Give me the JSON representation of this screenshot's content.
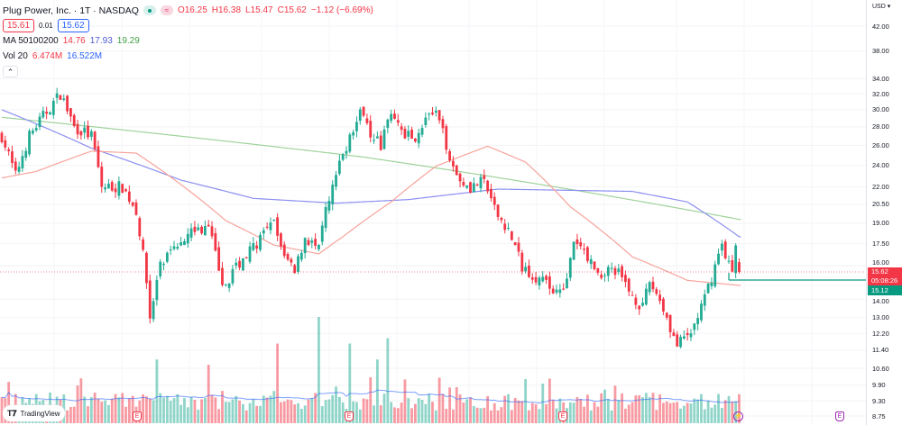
{
  "header": {
    "title": "Plug Power, Inc. · 1T · NASDAQ",
    "open": "O16.25",
    "high": "H16.38",
    "low": "L15.47",
    "close": "C15.62",
    "change": "−1.12 (−6.69%)",
    "bid": "15.61",
    "spread": "0.01",
    "ask": "15.62",
    "market_icon": "dot-icon",
    "flag_icon": "tilde-icon",
    "flag_glyph": "≈",
    "collapse_glyph": "⌃"
  },
  "indicators": {
    "ma_label": "MA 50100200",
    "ma50": "14.76",
    "ma100": "17.93",
    "ma200": "19.29",
    "vol_label": "Vol 20",
    "vol": "6.474M",
    "vol_ma": "16.522M"
  },
  "axis": {
    "currency": "USD ▾",
    "ticks": [
      "42.00",
      "38.00",
      "34.00",
      "32.00",
      "30.00",
      "28.00",
      "26.00",
      "24.00",
      "22.00",
      "20.50",
      "19.00",
      "17.50",
      "16.00",
      "14.00",
      "13.00",
      "12.20",
      "11.40",
      "10.60",
      "9.90",
      "9.30",
      "8.75"
    ],
    "last_price": "15.62",
    "countdown": "05:08:26",
    "line_price": "15.12"
  },
  "footer": {
    "brand": "TradingView",
    "earnings_label": "E",
    "bolt_glyph": "⚡"
  },
  "colors": {
    "up": "#22ab94",
    "down": "#f23645",
    "ma50": "#f7a39b",
    "ma100": "#8c8ff0",
    "ma200": "#9fd39b"
  },
  "chart_data": {
    "type": "candlestick",
    "bars": 215,
    "ylim": [
      8.75,
      42
    ],
    "scale": "log",
    "close_path": [
      [
        0,
        27
      ],
      [
        4,
        23
      ],
      [
        8,
        27
      ],
      [
        17,
        32
      ],
      [
        21,
        28
      ],
      [
        26,
        27
      ],
      [
        29,
        22
      ],
      [
        35,
        22
      ],
      [
        39,
        20
      ],
      [
        42,
        15
      ],
      [
        43,
        13
      ],
      [
        46,
        16
      ],
      [
        50,
        17
      ],
      [
        54,
        18.5
      ],
      [
        60,
        18.5
      ],
      [
        63,
        16
      ],
      [
        64,
        14.5
      ],
      [
        68,
        16
      ],
      [
        72,
        17
      ],
      [
        79,
        19
      ],
      [
        81,
        17
      ],
      [
        85,
        15.5
      ],
      [
        88,
        18
      ],
      [
        92,
        17
      ],
      [
        94,
        20
      ],
      [
        99,
        25
      ],
      [
        102,
        28
      ],
      [
        105,
        30
      ],
      [
        107,
        27.5
      ],
      [
        110,
        26
      ],
      [
        113,
        30
      ],
      [
        115,
        28
      ],
      [
        118,
        27
      ],
      [
        120,
        27
      ],
      [
        123,
        29
      ],
      [
        126,
        29.5
      ],
      [
        130,
        25
      ],
      [
        132,
        23
      ],
      [
        136,
        22
      ],
      [
        140,
        22.5
      ],
      [
        143,
        20
      ],
      [
        147,
        18.5
      ],
      [
        151,
        16
      ],
      [
        154,
        15.5
      ],
      [
        160,
        14.5
      ],
      [
        164,
        15
      ],
      [
        166,
        17.5
      ],
      [
        169,
        17
      ],
      [
        173,
        15.5
      ],
      [
        178,
        15.8
      ],
      [
        182,
        14.5
      ],
      [
        186,
        13.5
      ],
      [
        188,
        15
      ],
      [
        191,
        14
      ],
      [
        194,
        12.5
      ],
      [
        196,
        11.6
      ],
      [
        200,
        12.2
      ],
      [
        204,
        14
      ],
      [
        207,
        16
      ],
      [
        209,
        17.5
      ],
      [
        212,
        15.5
      ],
      [
        213,
        17.2
      ],
      [
        214,
        15.62
      ]
    ],
    "ma50": [
      [
        0,
        22.8
      ],
      [
        10,
        23.4
      ],
      [
        26,
        25.4
      ],
      [
        39,
        25.2
      ],
      [
        52,
        22.2
      ],
      [
        65,
        19.2
      ],
      [
        79,
        17.4
      ],
      [
        92,
        16.8
      ],
      [
        99,
        18.0
      ],
      [
        113,
        20.7
      ],
      [
        126,
        23.9
      ],
      [
        141,
        25.9
      ],
      [
        152,
        24.3
      ],
      [
        165,
        20.3
      ],
      [
        183,
        16.6
      ],
      [
        199,
        15.1
      ],
      [
        214,
        14.8
      ]
    ],
    "ma100": [
      [
        0,
        30
      ],
      [
        26,
        25.7
      ],
      [
        52,
        22.6
      ],
      [
        73,
        21.0
      ],
      [
        97,
        20.6
      ],
      [
        118,
        20.9
      ],
      [
        144,
        21.8
      ],
      [
        183,
        21.6
      ],
      [
        199,
        20.7
      ],
      [
        214,
        18.0
      ]
    ],
    "ma200": [
      [
        0,
        29.1
      ],
      [
        105,
        24.8
      ],
      [
        214,
        19.3
      ]
    ],
    "volume_spikes": [
      [
        92,
        1.0
      ],
      [
        80,
        0.75
      ],
      [
        101,
        0.75
      ],
      [
        112,
        0.8
      ],
      [
        45,
        0.6
      ],
      [
        60,
        0.55
      ],
      [
        109,
        0.6
      ]
    ]
  }
}
